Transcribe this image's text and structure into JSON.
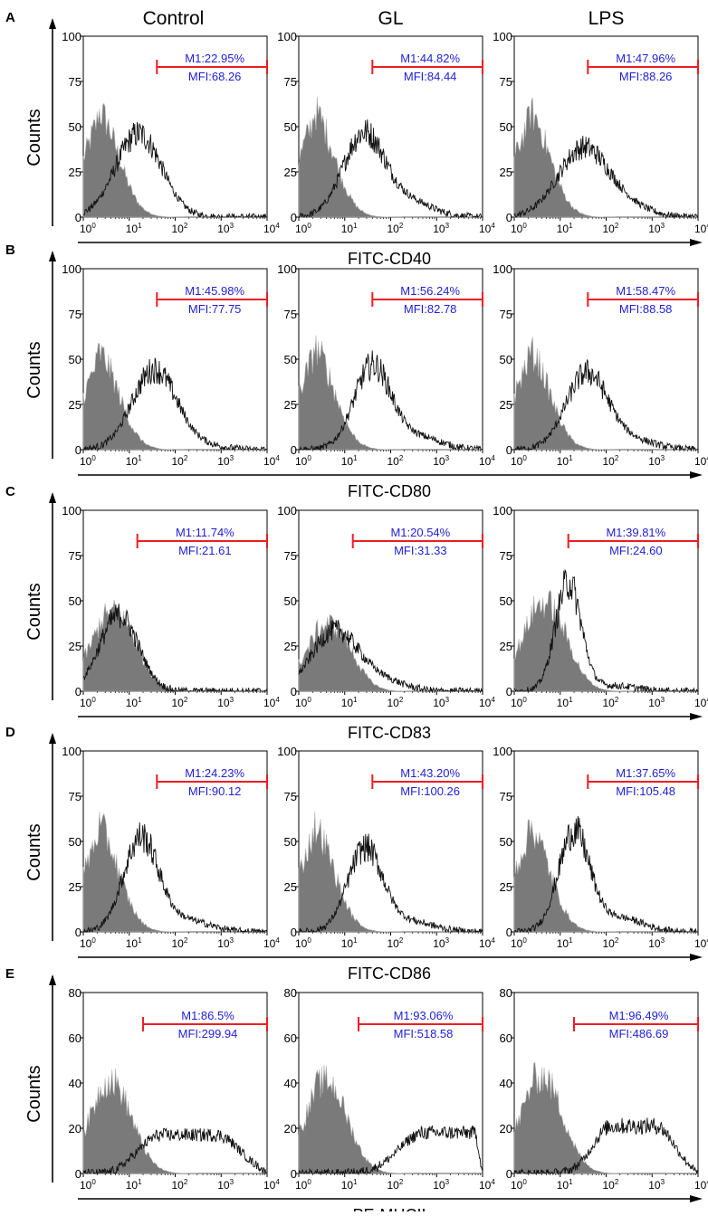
{
  "figure": {
    "column_titles": [
      "Control",
      "GL",
      "LPS"
    ],
    "y_axis_label": "Counts",
    "x_tick_base": "10",
    "x_tick_exponents": [
      "0",
      "1",
      "2",
      "3",
      "4"
    ]
  },
  "colors": {
    "background": "#ffffff",
    "axis": "#000000",
    "gate": "#ee1c24",
    "gate_text": "#1f1fd6",
    "isotype_fill": "#7a7a7a",
    "isotype_edge": "#b4b4b4",
    "sample_line": "#111111",
    "panel_label": "#000000"
  },
  "chart_data": [
    {
      "type": "histogram",
      "panel": "A",
      "marker": "FITC-CD40",
      "ylabel": "Counts",
      "ylim": [
        0,
        100
      ],
      "yticks": [
        0,
        25,
        50,
        75,
        100
      ],
      "xscale": "log",
      "xlim": [
        1,
        10000
      ],
      "plots": [
        {
          "condition": "Control",
          "m1": "M1:22.95%",
          "mfi": "MFI:68.26",
          "gate_start": 40,
          "gate_level": 83,
          "iso_peak": 2.0,
          "iso_height": 60,
          "peak": 16,
          "height": 46,
          "width": 0.5,
          "tail": 0
        },
        {
          "condition": "GL",
          "m1": "M1:44.82%",
          "mfi": "MFI:84.44",
          "gate_start": 40,
          "gate_level": 83,
          "iso_peak": 2.0,
          "iso_height": 60,
          "peak": 26,
          "height": 46,
          "width": 0.45,
          "tail": 0.18
        },
        {
          "condition": "LPS",
          "m1": "M1:47.96%",
          "mfi": "MFI:88.26",
          "gate_start": 40,
          "gate_level": 83,
          "iso_peak": 2.0,
          "iso_height": 60,
          "peak": 32,
          "height": 38,
          "width": 0.55,
          "tail": 0.12
        }
      ]
    },
    {
      "type": "histogram",
      "panel": "B",
      "marker": "FITC-CD80",
      "ylabel": "Counts",
      "ylim": [
        0,
        100
      ],
      "yticks": [
        0,
        25,
        50,
        75,
        100
      ],
      "xscale": "log",
      "xlim": [
        1,
        10000
      ],
      "plots": [
        {
          "condition": "Control",
          "m1": "M1:45.98%",
          "mfi": "MFI:77.75",
          "gate_start": 40,
          "gate_level": 83,
          "iso_peak": 2.0,
          "iso_height": 55,
          "peak": 35,
          "height": 44,
          "width": 0.48,
          "tail": 0.05
        },
        {
          "condition": "GL",
          "m1": "M1:56.24%",
          "mfi": "MFI:82.78",
          "gate_start": 40,
          "gate_level": 83,
          "iso_peak": 2.0,
          "iso_height": 58,
          "peak": 40,
          "height": 46,
          "width": 0.4,
          "tail": 0.15
        },
        {
          "condition": "LPS",
          "m1": "M1:58.47%",
          "mfi": "MFI:88.58",
          "gate_start": 40,
          "gate_level": 83,
          "iso_peak": 2.0,
          "iso_height": 56,
          "peak": 38,
          "height": 42,
          "width": 0.45,
          "tail": 0.12
        }
      ]
    },
    {
      "type": "histogram",
      "panel": "C",
      "marker": "FITC-CD83",
      "ylabel": "Counts",
      "ylim": [
        0,
        100
      ],
      "yticks": [
        0,
        25,
        50,
        75,
        100
      ],
      "xscale": "log",
      "xlim": [
        1,
        10000
      ],
      "plots": [
        {
          "condition": "Control",
          "m1": "M1:11.74%",
          "mfi": "MFI:21.61",
          "gate_start": 15,
          "gate_level": 83,
          "iso_peak": 5.0,
          "iso_height": 45,
          "peak": 6,
          "height": 42,
          "width": 0.42,
          "tail": 0
        },
        {
          "condition": "GL",
          "m1": "M1:20.54%",
          "mfi": "MFI:31.33",
          "gate_start": 15,
          "gate_level": 83,
          "iso_peak": 5.0,
          "iso_height": 38,
          "peak": 6,
          "height": 33,
          "width": 0.5,
          "tail": 0.18
        },
        {
          "condition": "LPS",
          "m1": "M1:39.81%",
          "mfi": "MFI:24.60",
          "gate_start": 15,
          "gate_level": 83,
          "iso_peak": 5.0,
          "iso_height": 50,
          "peak": 15,
          "height": 60,
          "width": 0.28,
          "tail": 0.05
        }
      ]
    },
    {
      "type": "histogram",
      "panel": "D",
      "marker": "FITC-CD86",
      "ylabel": "Counts",
      "ylim": [
        0,
        100
      ],
      "yticks": [
        0,
        25,
        50,
        75,
        100
      ],
      "xscale": "log",
      "xlim": [
        1,
        10000
      ],
      "plots": [
        {
          "condition": "Control",
          "m1": "M1:24.23%",
          "mfi": "MFI:90.12",
          "gate_start": 40,
          "gate_level": 83,
          "iso_peak": 2.0,
          "iso_height": 60,
          "peak": 18,
          "height": 52,
          "width": 0.38,
          "tail": 0.12
        },
        {
          "condition": "GL",
          "m1": "M1:43.20%",
          "mfi": "MFI:100.26",
          "gate_start": 40,
          "gate_level": 83,
          "iso_peak": 2.0,
          "iso_height": 60,
          "peak": 28,
          "height": 46,
          "width": 0.38,
          "tail": 0.12
        },
        {
          "condition": "LPS",
          "m1": "M1:37.65%",
          "mfi": "MFI:105.48",
          "gate_start": 40,
          "gate_level": 83,
          "iso_peak": 2.0,
          "iso_height": 60,
          "peak": 20,
          "height": 55,
          "width": 0.34,
          "tail": 0.14
        }
      ]
    },
    {
      "type": "histogram",
      "panel": "E",
      "marker": "PE-MHCII",
      "ylabel": "Counts",
      "ylim": [
        0,
        80
      ],
      "yticks": [
        0,
        20,
        40,
        60,
        80
      ],
      "xscale": "log",
      "xlim": [
        1,
        10000
      ],
      "plots": [
        {
          "condition": "Control",
          "m1": "M1:86.5%",
          "mfi": "MFI:299.94",
          "gate_start": 20,
          "gate_level": 66,
          "iso_peak": 4.0,
          "iso_height": 42,
          "peak": 200,
          "height": 17,
          "width": 1.0,
          "tail": 0,
          "broad": true
        },
        {
          "condition": "GL",
          "m1": "M1:93.06%",
          "mfi": "MFI:518.58",
          "gate_start": 20,
          "gate_level": 66,
          "iso_peak": 4.0,
          "iso_height": 42,
          "peak": 2500,
          "height": 18,
          "width": 1.1,
          "tail": 0,
          "broad": true
        },
        {
          "condition": "LPS",
          "m1": "M1:96.49%",
          "mfi": "MFI:486.69",
          "gate_start": 20,
          "gate_level": 66,
          "iso_peak": 4.0,
          "iso_height": 44,
          "peak": 400,
          "height": 21,
          "width": 0.8,
          "tail": 0,
          "broad": true
        }
      ]
    }
  ]
}
